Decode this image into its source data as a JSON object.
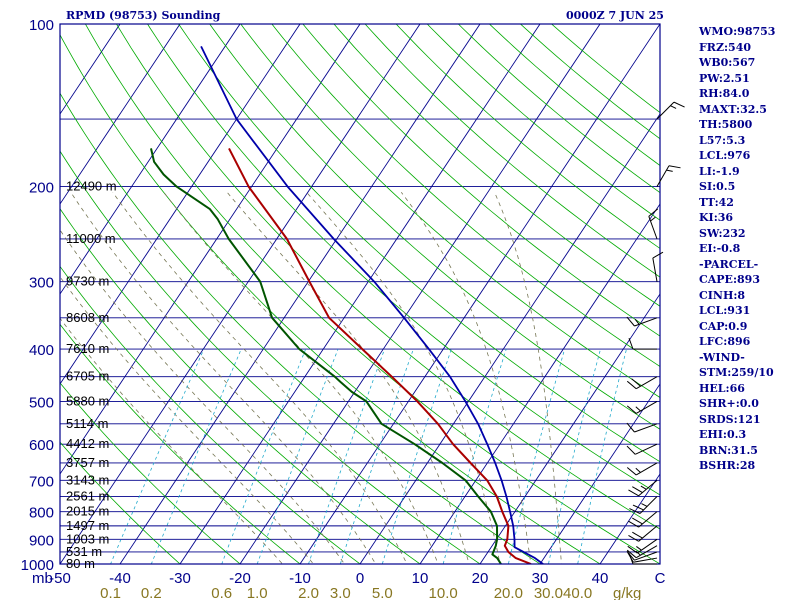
{
  "header": {
    "station": "RPMD (98753) Sounding",
    "time": "0000Z  7 JUN 25"
  },
  "indices": [
    "WMO:98753",
    "FRZ:540",
    "WB0:567",
    "PW:2.51",
    "RH:84.0",
    "MAXT:32.5",
    "TH:5800",
    "L57:5.3",
    "LCL:976",
    "LI:-1.9",
    "SI:0.5",
    "TT:42",
    "KI:36",
    "SW:232",
    "EI:-0.8",
    "-PARCEL-",
    "CAPE:893",
    "CINH:8",
    "LCL:931",
    "CAP:0.9",
    "LFC:896",
    "-WIND-",
    "STM:259/10",
    "HEL:66",
    "SHR+:0.0",
    "SRDS:121",
    "EHI:0.3",
    "BRN:31.5",
    "BSHR:28"
  ],
  "colors": {
    "frame": "#00008b",
    "isobar": "#00008b",
    "isotherm": "#00008b",
    "dry_adiabat": "#00aa00",
    "moist_adiabat": "#777755",
    "mixing_ratio": "#22aacc",
    "temperature": "#aa0000",
    "dewpoint": "#005500",
    "parcel": "#0000aa",
    "barb": "#000000",
    "axis_text": "#00008b",
    "mixing_text": "#887722"
  },
  "chart_data": {
    "type": "skew-t",
    "title": "RPMD (98753) Sounding",
    "xlabel": "C",
    "ylabel": "mb",
    "pressure_levels_mb": [
      100,
      200,
      300,
      400,
      500,
      600,
      700,
      800,
      900,
      1000
    ],
    "x_ticks_c": [
      -50,
      -40,
      -30,
      -20,
      -10,
      0,
      10,
      20,
      30,
      40
    ],
    "x_tick_labels": [
      "-50",
      "-40",
      "-30",
      "-20",
      "-10",
      "0",
      "10",
      "20",
      "30",
      "40"
    ],
    "xlim_c": [
      -50,
      50
    ],
    "ylim_mb": [
      1000,
      100
    ],
    "mixing_ratio_lines_gkg": [
      0.1,
      0.2,
      0.6,
      1.0,
      2.0,
      3.0,
      5.0,
      10.0,
      20.0,
      30.0,
      40.0
    ],
    "mixing_ratio_labels": [
      "0.1",
      "0.2",
      "0.6",
      "1.0",
      "2.0",
      "3.0",
      "5.0",
      "10.0",
      "20.0",
      "30.0",
      "40.0"
    ],
    "mixing_unit": "g/kg",
    "height_labels": [
      {
        "p": 200,
        "text": "12490 m"
      },
      {
        "p": 250,
        "text": "11000 m"
      },
      {
        "p": 300,
        "text": "9730 m"
      },
      {
        "p": 350,
        "text": "8608 m"
      },
      {
        "p": 400,
        "text": "7610 m"
      },
      {
        "p": 450,
        "text": "6705 m"
      },
      {
        "p": 500,
        "text": "5880 m"
      },
      {
        "p": 550,
        "text": "5114 m"
      },
      {
        "p": 600,
        "text": "4412 m"
      },
      {
        "p": 650,
        "text": "3757 m"
      },
      {
        "p": 700,
        "text": "3143 m"
      },
      {
        "p": 750,
        "text": "2561 m"
      },
      {
        "p": 800,
        "text": "2015 m"
      },
      {
        "p": 850,
        "text": "1497 m"
      },
      {
        "p": 900,
        "text": "1003 m"
      },
      {
        "p": 950,
        "text": "531 m"
      },
      {
        "p": 1000,
        "text": "80 m"
      }
    ],
    "temperature": {
      "p": [
        1000,
        975,
        950,
        925,
        900,
        850,
        800,
        750,
        700,
        650,
        600,
        550,
        500,
        450,
        400,
        350,
        300,
        250,
        200,
        170
      ],
      "t": [
        28.5,
        25.3,
        23.4,
        22.1,
        21.8,
        20.5,
        17.9,
        15.3,
        11.9,
        7.2,
        2.2,
        -2.6,
        -8.5,
        -15.5,
        -23.5,
        -32.5,
        -39.8,
        -48.3,
        -60.5,
        -68.0
      ]
    },
    "dewpoint": {
      "p": [
        1000,
        975,
        960,
        925,
        900,
        850,
        800,
        750,
        700,
        650,
        600,
        550,
        500,
        480,
        460,
        450,
        400,
        350,
        300,
        250,
        230,
        220,
        200,
        190,
        180,
        170
      ],
      "t": [
        23.5,
        22.2,
        21.0,
        20.6,
        20.1,
        18.6,
        16.0,
        12.2,
        8.3,
        2.5,
        -4.2,
        -12.0,
        -17.0,
        -20.5,
        -23.5,
        -25.0,
        -34.0,
        -42.0,
        -48.0,
        -58.0,
        -62.0,
        -64.5,
        -72.5,
        -76.0,
        -79.0,
        -81.0
      ]
    },
    "parcel": {
      "p": [
        1000,
        975,
        931,
        900,
        850,
        800,
        750,
        700,
        650,
        600,
        550,
        500,
        450,
        400,
        350,
        300,
        250,
        200,
        150,
        110
      ],
      "t": [
        30.5,
        28.5,
        23.9,
        23.0,
        21.3,
        19.2,
        16.9,
        14.3,
        11.3,
        7.9,
        4.1,
        -0.5,
        -5.8,
        -12.4,
        -20.0,
        -29.0,
        -40.5,
        -54.0,
        -70.0,
        -84.0
      ]
    },
    "winds": [
      {
        "p": 1000,
        "dir": 270,
        "spd": 10
      },
      {
        "p": 975,
        "dir": 260,
        "spd": 10
      },
      {
        "p": 950,
        "dir": 250,
        "spd": 10
      },
      {
        "p": 925,
        "dir": 240,
        "spd": 15
      },
      {
        "p": 900,
        "dir": 235,
        "spd": 15
      },
      {
        "p": 850,
        "dir": 230,
        "spd": 20
      },
      {
        "p": 800,
        "dir": 230,
        "spd": 20
      },
      {
        "p": 750,
        "dir": 225,
        "spd": 25
      },
      {
        "p": 700,
        "dir": 230,
        "spd": 25
      },
      {
        "p": 650,
        "dir": 240,
        "spd": 15
      },
      {
        "p": 600,
        "dir": 245,
        "spd": 10
      },
      {
        "p": 550,
        "dir": 250,
        "spd": 10
      },
      {
        "p": 500,
        "dir": 240,
        "spd": 15
      },
      {
        "p": 450,
        "dir": 240,
        "spd": 20
      },
      {
        "p": 400,
        "dir": 270,
        "spd": 10
      },
      {
        "p": 350,
        "dir": 250,
        "spd": 15
      },
      {
        "p": 300,
        "dir": 350,
        "spd": 10
      },
      {
        "p": 250,
        "dir": 340,
        "spd": 15
      },
      {
        "p": 200,
        "dir": 30,
        "spd": 15
      },
      {
        "p": 150,
        "dir": 45,
        "spd": 15
      }
    ]
  }
}
